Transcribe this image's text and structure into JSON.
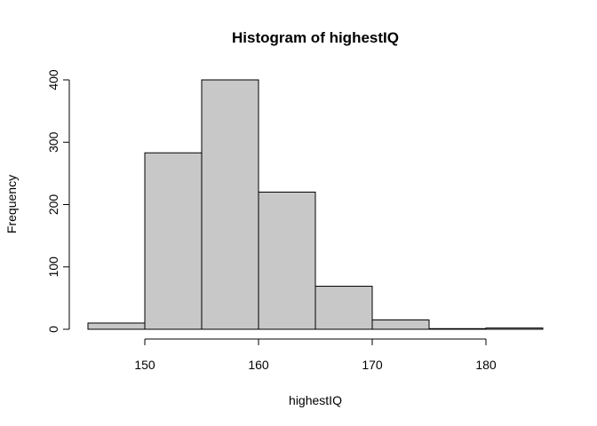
{
  "chart_data": {
    "type": "bar",
    "title": "Histogram of highestIQ",
    "xlabel": "highestIQ",
    "ylabel": "Frequency",
    "bins": [
      {
        "x0": 145,
        "x1": 150,
        "count": 10
      },
      {
        "x0": 150,
        "x1": 155,
        "count": 283
      },
      {
        "x0": 155,
        "x1": 160,
        "count": 400
      },
      {
        "x0": 160,
        "x1": 165,
        "count": 220
      },
      {
        "x0": 165,
        "x1": 170,
        "count": 69
      },
      {
        "x0": 170,
        "x1": 175,
        "count": 15
      },
      {
        "x0": 175,
        "x1": 180,
        "count": 1
      },
      {
        "x0": 180,
        "x1": 185,
        "count": 2
      }
    ],
    "xlim": [
      145,
      185
    ],
    "ylim": [
      0,
      400
    ],
    "xticks": [
      150,
      160,
      170,
      180
    ],
    "yticks": [
      0,
      100,
      200,
      300,
      400
    ],
    "colors": {
      "bar_fill": "#c8c8c8",
      "bar_stroke": "#000000"
    },
    "grid": false,
    "legend": "none"
  }
}
